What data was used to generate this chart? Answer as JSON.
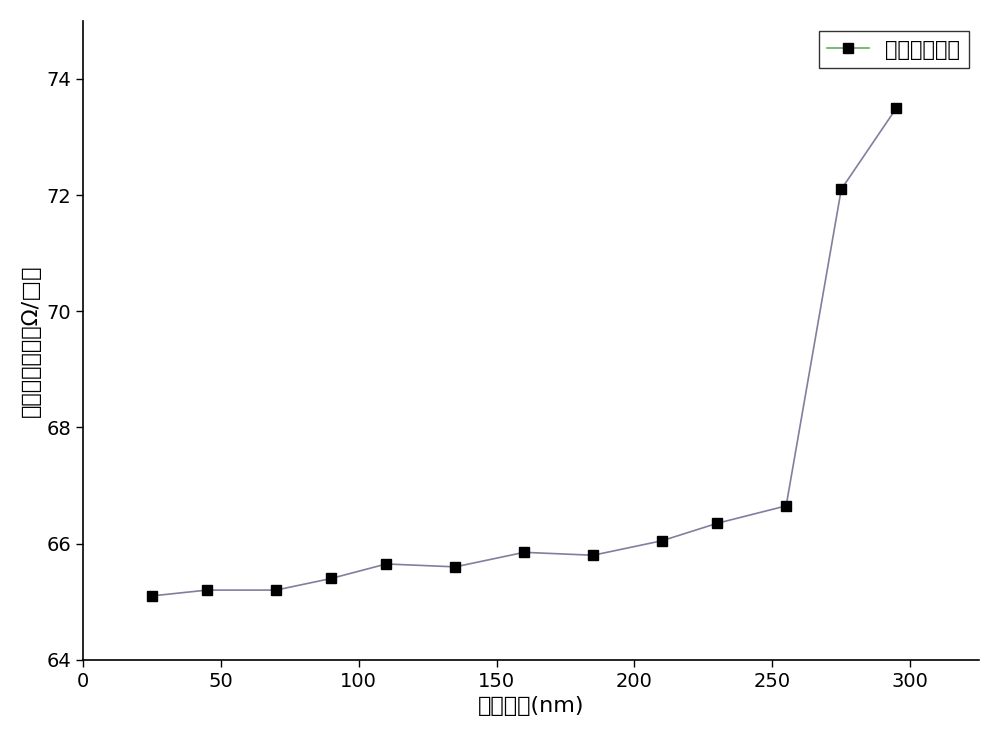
{
  "x": [
    25,
    45,
    70,
    90,
    110,
    135,
    160,
    185,
    210,
    230,
    255,
    275,
    295
  ],
  "y": [
    65.1,
    65.2,
    65.2,
    65.4,
    65.65,
    65.6,
    65.85,
    65.8,
    66.05,
    66.35,
    66.65,
    72.1,
    73.5
  ],
  "xlabel": "减薄厚度(nm)",
  "ylabel": "表面方块电阻（Ω/□）",
  "legend_label": "表面方块电阻",
  "xlim": [
    0,
    325
  ],
  "ylim": [
    64,
    75
  ],
  "xticks": [
    0,
    50,
    100,
    150,
    200,
    250,
    300
  ],
  "yticks": [
    64,
    66,
    68,
    70,
    72,
    74
  ],
  "line_color": "#7f7f9f",
  "legend_line_color": "#66aa66",
  "marker_color": "#000000",
  "marker": "s",
  "markersize": 7,
  "linewidth": 1.2,
  "background_color": "#ffffff",
  "legend_loc": "upper right",
  "xlabel_fontsize": 16,
  "ylabel_fontsize": 16,
  "tick_fontsize": 14,
  "legend_fontsize": 15
}
